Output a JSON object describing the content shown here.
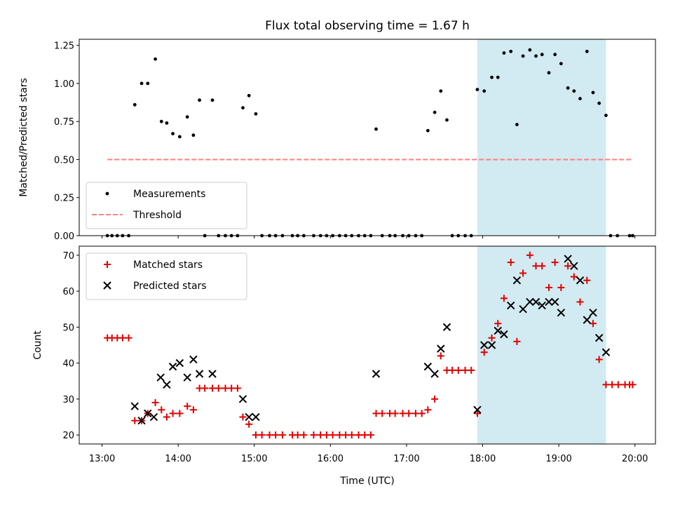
{
  "title": "Flux total observing time = 1.67 h",
  "colors": {
    "threshold": "#ff7f7f",
    "matched": "#e00000",
    "predicted": "#000000",
    "highlight": "#add8e6"
  },
  "chart_data": [
    {
      "type": "scatter",
      "ylabel": "Matched/Predicted stars",
      "ylim": [
        0,
        1.29
      ],
      "xlim_hours": [
        12.7,
        20.27
      ],
      "yticks": [
        0,
        0.25,
        0.5,
        0.75,
        1.0,
        1.25
      ],
      "ytick_labels": [
        "0.00",
        "0.25",
        "0.50",
        "0.75",
        "1.00",
        "1.25"
      ],
      "highlight_span_hours": [
        17.93,
        19.62
      ],
      "legend": {
        "placement": "lower-left",
        "entries": [
          "Measurements",
          "Threshold"
        ]
      },
      "threshold": {
        "name": "Threshold",
        "x": [
          13.07,
          19.97
        ],
        "y": 0.5
      },
      "series": [
        {
          "name": "Measurements",
          "points": [
            [
              13.07,
              0
            ],
            [
              13.13,
              0
            ],
            [
              13.2,
              0
            ],
            [
              13.27,
              0
            ],
            [
              13.35,
              0
            ],
            [
              13.43,
              0.86
            ],
            [
              13.52,
              1.0
            ],
            [
              13.6,
              1.0
            ],
            [
              13.7,
              1.16
            ],
            [
              13.78,
              0.75
            ],
            [
              13.85,
              0.74
            ],
            [
              13.93,
              0.67
            ],
            [
              14.02,
              0.65
            ],
            [
              14.12,
              0.78
            ],
            [
              14.2,
              0.66
            ],
            [
              14.28,
              0.89
            ],
            [
              14.35,
              0
            ],
            [
              14.45,
              0.89
            ],
            [
              14.53,
              0
            ],
            [
              14.62,
              0
            ],
            [
              14.7,
              0
            ],
            [
              14.78,
              0
            ],
            [
              14.85,
              0.84
            ],
            [
              14.93,
              0.92
            ],
            [
              15.02,
              0.8
            ],
            [
              15.1,
              0
            ],
            [
              15.2,
              0
            ],
            [
              15.28,
              0
            ],
            [
              15.37,
              0
            ],
            [
              15.5,
              0
            ],
            [
              15.57,
              0
            ],
            [
              15.65,
              0
            ],
            [
              15.78,
              0
            ],
            [
              15.87,
              0
            ],
            [
              15.95,
              0
            ],
            [
              16.03,
              0
            ],
            [
              16.12,
              0
            ],
            [
              16.2,
              0
            ],
            [
              16.28,
              0
            ],
            [
              16.37,
              0
            ],
            [
              16.45,
              0
            ],
            [
              16.53,
              0
            ],
            [
              16.6,
              0.7
            ],
            [
              16.68,
              0
            ],
            [
              16.78,
              0
            ],
            [
              16.85,
              0
            ],
            [
              16.95,
              0
            ],
            [
              17.03,
              0
            ],
            [
              17.12,
              0
            ],
            [
              17.2,
              0
            ],
            [
              17.28,
              0.69
            ],
            [
              17.37,
              0.81
            ],
            [
              17.45,
              0.95
            ],
            [
              17.53,
              0.76
            ],
            [
              17.6,
              0
            ],
            [
              17.68,
              0
            ],
            [
              17.77,
              0
            ],
            [
              17.85,
              0
            ],
            [
              17.93,
              0.96
            ],
            [
              18.02,
              0.95
            ],
            [
              18.12,
              1.04
            ],
            [
              18.2,
              1.04
            ],
            [
              18.28,
              1.2
            ],
            [
              18.37,
              1.21
            ],
            [
              18.45,
              0.73
            ],
            [
              18.53,
              1.18
            ],
            [
              18.62,
              1.22
            ],
            [
              18.7,
              1.18
            ],
            [
              18.78,
              1.19
            ],
            [
              18.87,
              1.07
            ],
            [
              18.95,
              1.19
            ],
            [
              19.03,
              1.13
            ],
            [
              19.12,
              0.97
            ],
            [
              19.2,
              0.95
            ],
            [
              19.28,
              0.9
            ],
            [
              19.37,
              1.21
            ],
            [
              19.45,
              0.94
            ],
            [
              19.53,
              0.87
            ],
            [
              19.62,
              0.79
            ],
            [
              19.68,
              0
            ],
            [
              19.77,
              0
            ],
            [
              19.93,
              0
            ],
            [
              19.97,
              0
            ]
          ]
        }
      ]
    },
    {
      "type": "scatter",
      "xlabel": "Time (UTC)",
      "ylabel": "Count",
      "ylim": [
        17.5,
        72.5
      ],
      "xlim_hours": [
        12.7,
        20.27
      ],
      "yticks": [
        20,
        30,
        40,
        50,
        60,
        70
      ],
      "ytick_labels": [
        "20",
        "30",
        "40",
        "50",
        "60",
        "70"
      ],
      "xticks_hours": [
        13,
        14,
        15,
        16,
        17,
        18,
        19,
        20
      ],
      "xtick_labels": [
        "13:00",
        "14:00",
        "15:00",
        "16:00",
        "17:00",
        "18:00",
        "19:00",
        "20:00"
      ],
      "highlight_span_hours": [
        17.93,
        19.62
      ],
      "legend": {
        "placement": "upper-left",
        "entries": [
          "Matched stars",
          "Predicted stars"
        ]
      },
      "series": [
        {
          "name": "Matched stars",
          "marker": "plus",
          "points": [
            [
              13.07,
              47
            ],
            [
              13.13,
              47
            ],
            [
              13.2,
              47
            ],
            [
              13.27,
              47
            ],
            [
              13.35,
              47
            ],
            [
              13.43,
              24
            ],
            [
              13.52,
              24
            ],
            [
              13.6,
              26
            ],
            [
              13.7,
              29
            ],
            [
              13.78,
              27
            ],
            [
              13.85,
              25
            ],
            [
              13.93,
              26
            ],
            [
              14.02,
              26
            ],
            [
              14.12,
              28
            ],
            [
              14.2,
              27
            ],
            [
              14.28,
              33
            ],
            [
              14.35,
              33
            ],
            [
              14.45,
              33
            ],
            [
              14.53,
              33
            ],
            [
              14.62,
              33
            ],
            [
              14.7,
              33
            ],
            [
              14.78,
              33
            ],
            [
              14.85,
              25
            ],
            [
              14.93,
              23
            ],
            [
              15.02,
              20
            ],
            [
              15.1,
              20
            ],
            [
              15.2,
              20
            ],
            [
              15.28,
              20
            ],
            [
              15.37,
              20
            ],
            [
              15.5,
              20
            ],
            [
              15.57,
              20
            ],
            [
              15.65,
              20
            ],
            [
              15.78,
              20
            ],
            [
              15.87,
              20
            ],
            [
              15.95,
              20
            ],
            [
              16.03,
              20
            ],
            [
              16.12,
              20
            ],
            [
              16.2,
              20
            ],
            [
              16.28,
              20
            ],
            [
              16.37,
              20
            ],
            [
              16.45,
              20
            ],
            [
              16.53,
              20
            ],
            [
              16.6,
              26
            ],
            [
              16.68,
              26
            ],
            [
              16.78,
              26
            ],
            [
              16.85,
              26
            ],
            [
              16.95,
              26
            ],
            [
              17.03,
              26
            ],
            [
              17.12,
              26
            ],
            [
              17.2,
              26
            ],
            [
              17.28,
              27
            ],
            [
              17.37,
              30
            ],
            [
              17.45,
              42
            ],
            [
              17.53,
              38
            ],
            [
              17.6,
              38
            ],
            [
              17.68,
              38
            ],
            [
              17.77,
              38
            ],
            [
              17.85,
              38
            ],
            [
              17.93,
              26
            ],
            [
              18.02,
              43
            ],
            [
              18.12,
              47
            ],
            [
              18.2,
              51
            ],
            [
              18.28,
              58
            ],
            [
              18.37,
              68
            ],
            [
              18.45,
              46
            ],
            [
              18.53,
              65
            ],
            [
              18.62,
              70
            ],
            [
              18.7,
              67
            ],
            [
              18.78,
              67
            ],
            [
              18.87,
              61
            ],
            [
              18.95,
              68
            ],
            [
              19.03,
              61
            ],
            [
              19.12,
              67
            ],
            [
              19.2,
              64
            ],
            [
              19.28,
              57
            ],
            [
              19.37,
              63
            ],
            [
              19.45,
              51
            ],
            [
              19.53,
              41
            ],
            [
              19.62,
              34
            ],
            [
              19.7,
              34
            ],
            [
              19.78,
              34
            ],
            [
              19.87,
              34
            ],
            [
              19.93,
              34
            ],
            [
              19.97,
              34
            ]
          ]
        },
        {
          "name": "Predicted stars",
          "marker": "x",
          "points": [
            [
              13.43,
              28
            ],
            [
              13.52,
              24
            ],
            [
              13.6,
              26
            ],
            [
              13.68,
              25
            ],
            [
              13.77,
              36
            ],
            [
              13.85,
              34
            ],
            [
              13.93,
              39
            ],
            [
              14.02,
              40
            ],
            [
              14.12,
              36
            ],
            [
              14.2,
              41
            ],
            [
              14.28,
              37
            ],
            [
              14.45,
              37
            ],
            [
              14.85,
              30
            ],
            [
              14.93,
              25
            ],
            [
              15.02,
              25
            ],
            [
              16.6,
              37
            ],
            [
              17.28,
              39
            ],
            [
              17.37,
              37
            ],
            [
              17.45,
              44
            ],
            [
              17.53,
              50
            ],
            [
              17.93,
              27
            ],
            [
              18.02,
              45
            ],
            [
              18.12,
              45
            ],
            [
              18.2,
              49
            ],
            [
              18.28,
              48
            ],
            [
              18.37,
              56
            ],
            [
              18.45,
              63
            ],
            [
              18.53,
              55
            ],
            [
              18.62,
              57
            ],
            [
              18.7,
              57
            ],
            [
              18.78,
              56
            ],
            [
              18.87,
              57
            ],
            [
              18.95,
              57
            ],
            [
              19.03,
              54
            ],
            [
              19.12,
              69
            ],
            [
              19.2,
              67
            ],
            [
              19.28,
              63
            ],
            [
              19.37,
              52
            ],
            [
              19.45,
              54
            ],
            [
              19.53,
              47
            ],
            [
              19.62,
              43
            ]
          ]
        }
      ]
    }
  ]
}
